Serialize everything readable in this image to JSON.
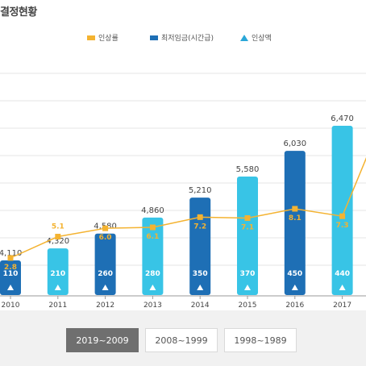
{
  "header": {
    "title": "결정현황"
  },
  "legend": [
    {
      "label": "인상률",
      "color": "#f4b331",
      "shape": "square"
    },
    {
      "label": "최저임금(시간급)",
      "color": "#1e6fb5",
      "shape": "square"
    },
    {
      "label": "인상액",
      "color": "#2aa7d8",
      "shape": "triangle"
    }
  ],
  "tabs": [
    {
      "label": "2019~2009",
      "active": true
    },
    {
      "label": "2008~1999",
      "active": false
    },
    {
      "label": "1998~1989",
      "active": false
    }
  ],
  "colors": {
    "bar_dark": "#1e6fb5",
    "bar_light": "#38c4e6",
    "rate_line": "#f4b331",
    "text_dark": "#444444"
  },
  "chart_data": {
    "type": "bar",
    "categories": [
      "2010",
      "2011",
      "2012",
      "2013",
      "2014",
      "2015",
      "2016",
      "2017"
    ],
    "series": [
      {
        "name": "최저임금(시간급)",
        "values": [
          4110,
          4320,
          4580,
          4860,
          5210,
          5580,
          6030,
          6470
        ]
      },
      {
        "name": "인상액",
        "values": [
          110,
          210,
          260,
          280,
          350,
          370,
          450,
          440
        ]
      },
      {
        "name": "인상률",
        "values": [
          2.8,
          5.1,
          6.0,
          6.1,
          7.2,
          7.1,
          8.1,
          7.3
        ]
      }
    ],
    "value_labels": [
      "4,110",
      "4,320",
      "4,580",
      "4,860",
      "5,210",
      "5,580",
      "6,030",
      "6,470"
    ],
    "increase_labels": [
      "110",
      "210",
      "260",
      "280",
      "350",
      "370",
      "450",
      "440"
    ],
    "rate_labels": [
      "2.8",
      "5.1",
      "6.0",
      "6.1",
      "7.2",
      "7.1",
      "8.1",
      "7.3"
    ],
    "bar_style": [
      "dark",
      "light",
      "dark",
      "light",
      "dark",
      "light",
      "dark",
      "light"
    ],
    "grid": true,
    "legend_position": "top-center"
  }
}
